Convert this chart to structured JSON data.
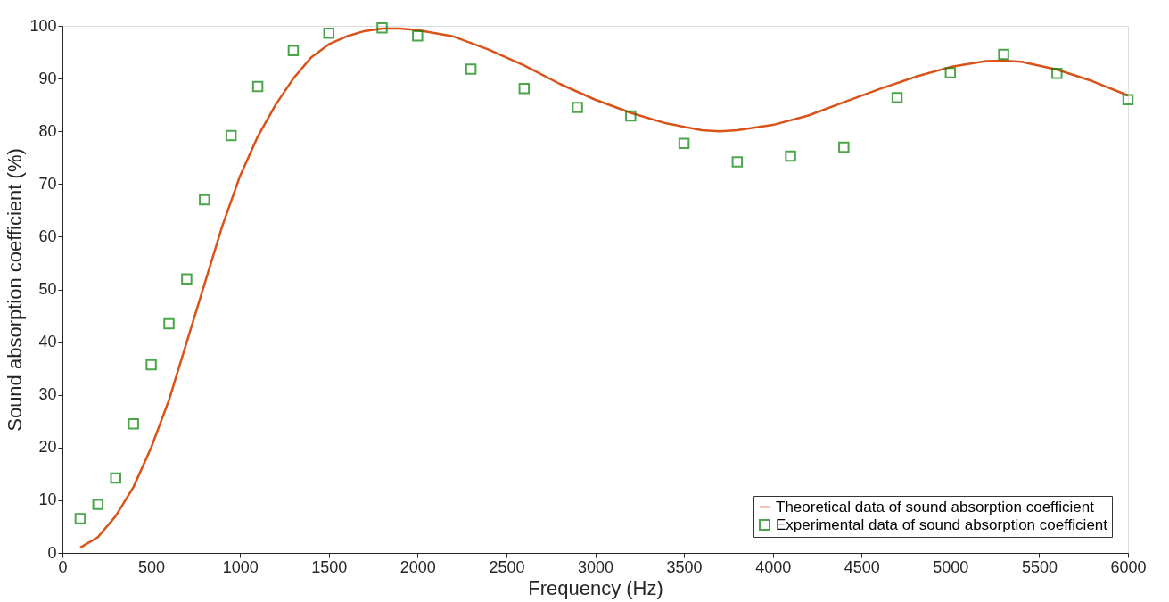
{
  "chart_data": {
    "type": "line",
    "xlabel": "Frequency (Hz)",
    "ylabel": "Sound absorption coefficient (%)",
    "xlim": [
      0,
      6000
    ],
    "xticks": [
      0,
      500,
      1000,
      1500,
      2000,
      2500,
      3000,
      3500,
      4000,
      4500,
      5000,
      5500,
      6000
    ],
    "ylim": [
      0,
      100
    ],
    "yticks": [
      0,
      10,
      20,
      30,
      40,
      50,
      60,
      70,
      80,
      90,
      100
    ],
    "grid": false,
    "legend": "bottom right",
    "series": [
      {
        "name": "Theoretical data of sound absorption coefficient",
        "color": "#d95319",
        "line_style": "solid",
        "marker": "none",
        "x": [
          100,
          200,
          300,
          400,
          500,
          600,
          700,
          800,
          900,
          1000,
          1100,
          1200,
          1300,
          1400,
          1500,
          1600,
          1700,
          1800,
          1900,
          2000,
          2200,
          2400,
          2600,
          2800,
          3000,
          3200,
          3400,
          3600,
          3700,
          3800,
          4000,
          4200,
          4400,
          4600,
          4800,
          5000,
          5200,
          5300,
          5400,
          5600,
          5800,
          6000
        ],
        "values": [
          1,
          3,
          7,
          12.5,
          20,
          29,
          40,
          51,
          62,
          71.5,
          79,
          85,
          90,
          94,
          96.5,
          98,
          99,
          99.5,
          99.5,
          99.2,
          98,
          95.5,
          92.5,
          89,
          86,
          83.5,
          81.5,
          80.2,
          80,
          80.2,
          81.2,
          83,
          85.5,
          88,
          90.3,
          92.2,
          93.3,
          93.4,
          93.2,
          91.7,
          89.5,
          86.8
        ]
      },
      {
        "name": "Experimental data of sound absorption coefficient",
        "type": "scatter",
        "color": "#008000",
        "marker": "square",
        "x": [
          100,
          200,
          300,
          400,
          500,
          600,
          700,
          800,
          950,
          1100,
          1300,
          1500,
          1800,
          2000,
          2300,
          2600,
          2900,
          3200,
          3500,
          3800,
          4100,
          4400,
          4700,
          5000,
          5300,
          5600,
          6000
        ],
        "values": [
          6.5,
          9.2,
          14.2,
          24.5,
          35.7,
          43.5,
          52,
          67,
          79.2,
          88.5,
          95.3,
          98.6,
          99.6,
          98.1,
          91.8,
          88.1,
          84.5,
          82.9,
          77.7,
          74.2,
          75.3,
          77,
          86.4,
          91.1,
          94.6,
          91,
          86
        ]
      }
    ]
  }
}
